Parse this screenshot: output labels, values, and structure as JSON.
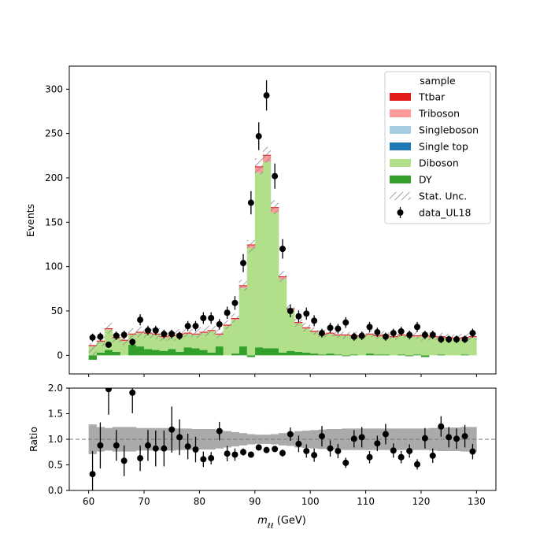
{
  "chart_data": {
    "type": "bar",
    "x_label_main": "m",
    "x_label_sub": "ℓℓ",
    "x_label_unit": " (GeV)",
    "top": {
      "ylabel": "Events",
      "xlim": [
        56.5,
        133.5
      ],
      "ylim": [
        -21,
        326
      ],
      "yticks": [
        0,
        50,
        100,
        150,
        200,
        250,
        300
      ],
      "bin_edges": [
        60,
        61.43,
        62.86,
        64.29,
        65.71,
        67.14,
        68.57,
        70,
        71.43,
        72.86,
        74.29,
        75.71,
        77.14,
        78.57,
        80,
        81.43,
        82.86,
        84.29,
        85.71,
        87.14,
        88.57,
        90,
        91.43,
        92.86,
        94.29,
        95.71,
        97.14,
        98.57,
        100,
        101.43,
        102.86,
        104.29,
        105.71,
        107.14,
        108.57,
        110,
        111.43,
        112.86,
        114.29,
        115.71,
        117.14,
        118.57,
        120,
        121.43,
        122.86,
        124.29,
        125.71,
        127.14,
        128.57,
        130
      ],
      "series": [
        {
          "name": "DY",
          "color": "#33a02c",
          "values": [
            -5,
            3,
            6,
            4,
            0,
            12,
            10,
            7,
            6,
            5,
            7,
            4,
            9,
            8,
            6,
            3,
            10,
            0,
            2,
            10,
            -2,
            9,
            8,
            8,
            3,
            5,
            4,
            3,
            2,
            1,
            2,
            1,
            -1,
            1,
            0,
            2,
            1,
            1,
            0,
            1,
            -1,
            1,
            -2,
            0,
            1,
            0,
            0,
            1,
            0
          ]
        },
        {
          "name": "Diboson",
          "color": "#b2df8a",
          "values": [
            10,
            12,
            23,
            15,
            16,
            11,
            15,
            17,
            17,
            15,
            14,
            19,
            15,
            15,
            19,
            24,
            13,
            33,
            38,
            66,
            121,
            197,
            210,
            153,
            83,
            46,
            32,
            27,
            24,
            22,
            22,
            21,
            22,
            20,
            21,
            21,
            20,
            21,
            20,
            21,
            21,
            20,
            21,
            20,
            19,
            19,
            18,
            18,
            20
          ]
        },
        {
          "name": "Single top",
          "color": "#1f78b4",
          "values": [
            0,
            0,
            0,
            0,
            0,
            0,
            0,
            0,
            0,
            0,
            0,
            0,
            0,
            0,
            0,
            0,
            0,
            0,
            0,
            0,
            0,
            0,
            0,
            0,
            0,
            0,
            0,
            0,
            0,
            0,
            0,
            0,
            0,
            0,
            0,
            0,
            0,
            0,
            0,
            0,
            0,
            0,
            0,
            0,
            0,
            0,
            0,
            0,
            0
          ]
        },
        {
          "name": "Singleboson",
          "color": "#a6cee3",
          "values": [
            0,
            0,
            0,
            0,
            0,
            0,
            0,
            0,
            0,
            0,
            0,
            0,
            0,
            0,
            0,
            0,
            0,
            0,
            0,
            0,
            0,
            0,
            0,
            0,
            0,
            0,
            0,
            0,
            0,
            0,
            0,
            0,
            0,
            0,
            0,
            0,
            0,
            0,
            0,
            0,
            0,
            0,
            0,
            0,
            0,
            0,
            0,
            0,
            0
          ]
        },
        {
          "name": "Triboson",
          "color": "#fb9a99",
          "values": [
            0.5,
            0.5,
            0.5,
            0.5,
            0.5,
            0.5,
            0.5,
            0.5,
            0.5,
            0.5,
            0.5,
            0.5,
            0.5,
            0.5,
            0.5,
            0.5,
            0.5,
            0.5,
            1,
            2,
            3,
            6,
            7,
            5,
            2,
            1,
            0.5,
            0.5,
            0.5,
            0.5,
            0.5,
            0.5,
            0.5,
            0.5,
            0.5,
            0.5,
            0.5,
            0.5,
            0.5,
            0.5,
            0.5,
            0.5,
            0.5,
            0.5,
            0.5,
            0.5,
            0.5,
            0.5,
            0.5
          ]
        },
        {
          "name": "Ttbar",
          "color": "#e31a1c",
          "values": [
            1,
            1,
            1,
            1,
            1,
            1,
            1,
            1,
            1,
            1,
            1,
            1,
            1,
            1,
            1,
            1,
            1,
            1,
            1,
            1,
            1,
            1,
            1,
            1,
            1,
            1,
            1,
            1,
            1,
            1,
            1,
            1,
            1,
            1,
            1,
            1,
            1,
            1,
            1,
            1,
            1,
            1,
            1,
            1,
            1,
            1,
            1,
            1,
            1
          ]
        }
      ],
      "stat_unc": [
        7,
        6,
        6,
        6,
        6,
        6,
        6,
        6,
        6,
        5,
        6,
        5,
        5,
        5,
        5,
        5,
        5,
        5,
        5,
        6,
        7,
        9,
        9,
        8,
        6,
        5,
        5,
        5,
        4,
        4,
        4,
        4,
        4,
        4,
        4,
        4,
        4,
        4,
        4,
        4,
        4,
        4,
        4,
        4,
        4,
        4,
        4,
        4,
        4
      ],
      "data": {
        "name": "data_UL18",
        "x": [
          60.7,
          62.1,
          63.6,
          65.0,
          66.4,
          67.9,
          69.3,
          70.7,
          72.1,
          73.6,
          75.0,
          76.4,
          77.9,
          79.3,
          80.7,
          82.1,
          83.6,
          85.0,
          86.4,
          87.9,
          89.3,
          90.7,
          92.1,
          93.6,
          95.0,
          96.4,
          97.9,
          99.3,
          100.7,
          102.1,
          103.6,
          105.0,
          106.4,
          107.9,
          109.3,
          110.7,
          112.1,
          113.6,
          115.0,
          116.4,
          117.9,
          119.3,
          120.7,
          122.1,
          123.6,
          125.0,
          126.4,
          127.9,
          129.3
        ],
        "y": [
          20,
          21,
          12,
          22,
          23,
          15,
          40,
          28,
          28,
          24,
          24,
          22,
          33,
          33,
          42,
          42,
          35,
          48,
          59,
          104,
          172,
          247,
          293,
          202,
          120,
          50,
          44,
          47,
          39,
          25,
          31,
          30,
          37,
          21,
          22,
          32,
          26,
          21,
          25,
          27,
          23,
          32,
          23,
          23,
          18,
          18,
          18,
          18,
          25
        ],
        "err": [
          4.5,
          4.6,
          3.5,
          4.7,
          4.8,
          3.9,
          6.3,
          5.3,
          5.3,
          4.9,
          4.9,
          4.7,
          5.7,
          5.7,
          6.5,
          6.5,
          5.9,
          6.9,
          7.7,
          10.2,
          13.1,
          15.7,
          17.1,
          14.2,
          11.0,
          7.1,
          6.6,
          6.9,
          6.2,
          5.0,
          5.6,
          5.5,
          6.1,
          4.6,
          4.7,
          5.7,
          5.1,
          4.6,
          5.0,
          5.2,
          4.8,
          5.7,
          4.8,
          4.8,
          4.2,
          4.2,
          4.2,
          4.2,
          5.0
        ]
      }
    },
    "bottom": {
      "ylabel": "Ratio",
      "xlabel": "m_ℓℓ (GeV)",
      "xlim": [
        56.5,
        133.5
      ],
      "ylim": [
        0,
        2
      ],
      "yticks": [
        0.0,
        0.5,
        1.0,
        1.5,
        2.0
      ],
      "xticks": [
        60,
        70,
        80,
        90,
        100,
        110,
        120,
        130
      ],
      "reference_line": 1.0,
      "ratio_unc": [
        0.29,
        0.24,
        0.22,
        0.24,
        0.24,
        0.24,
        0.22,
        0.22,
        0.22,
        0.22,
        0.22,
        0.21,
        0.21,
        0.2,
        0.2,
        0.2,
        0.18,
        0.16,
        0.14,
        0.12,
        0.1,
        0.09,
        0.09,
        0.1,
        0.12,
        0.13,
        0.16,
        0.17,
        0.18,
        0.19,
        0.2,
        0.2,
        0.21,
        0.21,
        0.21,
        0.21,
        0.21,
        0.21,
        0.21,
        0.21,
        0.21,
        0.21,
        0.21,
        0.22,
        0.23,
        0.23,
        0.23,
        0.24,
        0.24
      ],
      "ratio": [
        0.32,
        0.88,
        1.98,
        0.88,
        0.58,
        1.91,
        0.63,
        0.88,
        0.82,
        0.82,
        1.19,
        1.04,
        0.86,
        0.8,
        0.61,
        0.63,
        1.16,
        0.72,
        0.7,
        0.75,
        0.7,
        0.84,
        0.79,
        0.81,
        0.73,
        1.1,
        0.91,
        0.77,
        0.69,
        1.06,
        0.82,
        0.77,
        0.54,
        1.01,
        1.04,
        0.65,
        0.92,
        1.1,
        0.78,
        0.65,
        0.77,
        0.51,
        1.02,
        0.68,
        1.25,
        1.04,
        1.01,
        1.06,
        0.76
      ],
      "ratio_err": [
        0.45,
        0.45,
        0.5,
        0.3,
        0.3,
        0.4,
        0.25,
        0.3,
        0.35,
        0.35,
        0.45,
        0.35,
        0.25,
        0.25,
        0.15,
        0.12,
        0.18,
        0.15,
        0.12,
        0.07,
        0.05,
        0.05,
        0.05,
        0.06,
        0.07,
        0.13,
        0.16,
        0.13,
        0.13,
        0.2,
        0.16,
        0.14,
        0.1,
        0.17,
        0.2,
        0.12,
        0.15,
        0.2,
        0.14,
        0.12,
        0.13,
        0.1,
        0.2,
        0.14,
        0.2,
        0.2,
        0.2,
        0.22,
        0.15
      ]
    },
    "legend": {
      "title": "sample",
      "placement": "top-right",
      "entries": [
        {
          "label": "Ttbar",
          "kind": "patch",
          "color": "#e31a1c"
        },
        {
          "label": "Triboson",
          "kind": "patch",
          "color": "#fb9a99"
        },
        {
          "label": "Singleboson",
          "kind": "patch",
          "color": "#a6cee3"
        },
        {
          "label": "Single top",
          "kind": "patch",
          "color": "#1f78b4"
        },
        {
          "label": "Diboson",
          "kind": "patch",
          "color": "#b2df8a"
        },
        {
          "label": "DY",
          "kind": "patch",
          "color": "#33a02c"
        },
        {
          "label": "Stat. Unc.",
          "kind": "hatch",
          "color": "#888888"
        },
        {
          "label": "data_UL18",
          "kind": "marker",
          "color": "#000000"
        }
      ]
    }
  }
}
